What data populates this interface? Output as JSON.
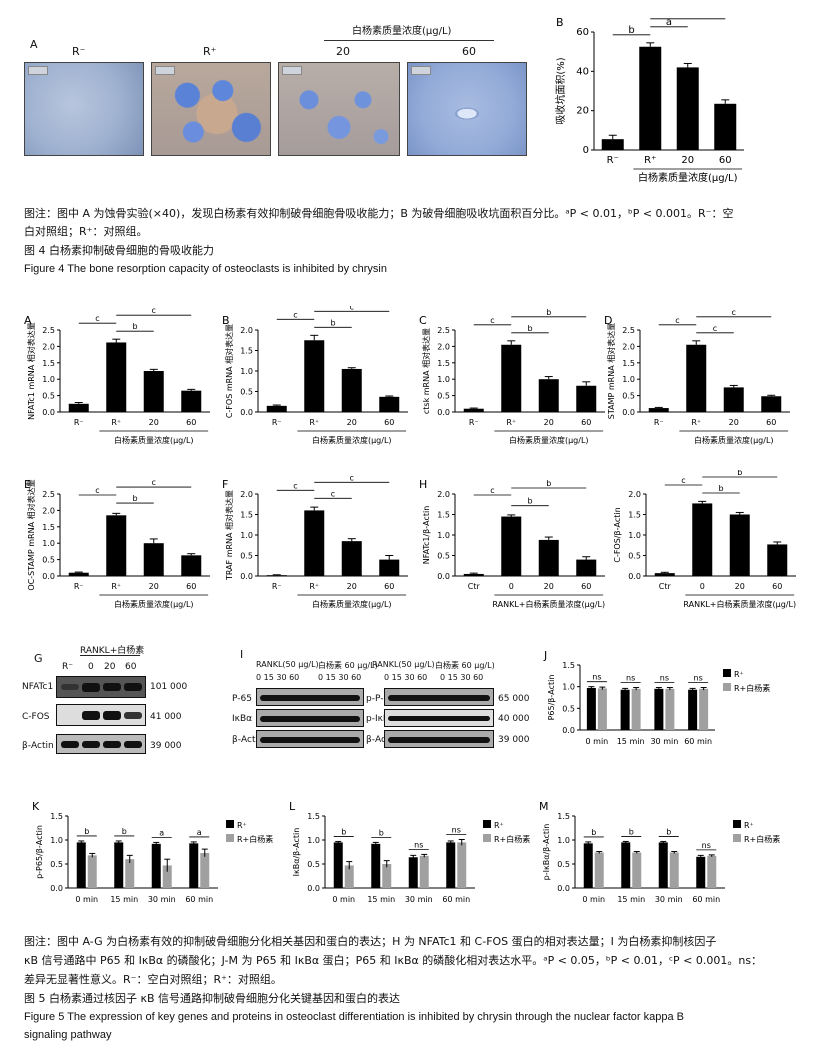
{
  "figure4": {
    "panel_a": {
      "letter": "A",
      "group_title": "白杨素质量浓度(μg/L)",
      "images": [
        {
          "label": "R⁻"
        },
        {
          "label": "R⁺"
        },
        {
          "label": "20"
        },
        {
          "label": "60"
        }
      ]
    },
    "caption": {
      "line1": "图注：图中 A 为蚀骨实验(×40)，发现白杨素有效抑制破骨细胞骨吸收能力；B 为破骨细胞吸收坑面积百分比。ᵃP < 0.01，ᵇP < 0.001。R⁻：空",
      "line2": "白对照组；R⁺：对照组。",
      "title_cn": "图 4   白杨素抑制破骨细胞的骨吸收能力",
      "title_en": "Figure 4    The bone resorption capacity of osteoclasts is inhibited by chrysin"
    }
  },
  "figure5": {
    "panel_g": {
      "letter": "G",
      "header": "RANKL+白杨素",
      "lanes": [
        "R⁻",
        "0",
        "20",
        "60"
      ],
      "rows": [
        {
          "name": "NFATc1",
          "mw": "101 000"
        },
        {
          "name": "C-FOS",
          "mw": "41 000"
        },
        {
          "name": "β-Actin",
          "mw": "39 000"
        }
      ]
    },
    "panel_i": {
      "letter": "I",
      "left_header1": "RANKL(50 μg/L)",
      "left_header2": "白杨素 60 μg/L)",
      "right_header1": "RANKL(50 μg/L)",
      "right_header2": "白杨素 60 μg/L)",
      "times": "0 15 30 60",
      "left_rows": [
        "P-65",
        "IκBα",
        "β-Actin"
      ],
      "right_rows": [
        "p-P-65",
        "p-IκBα",
        "β-Actin"
      ],
      "mws": [
        "65 000",
        "40 000",
        "39 000"
      ]
    },
    "caption": {
      "line1": "图注：图中 A-G 为白杨素有效的抑制破骨细胞分化相关基因和蛋白的表达；H 为 NFATc1 和 C-FOS 蛋白的相对表达量；I 为白杨素抑制核因子",
      "line2": "κB 信号通路中 P65 和 IκBα 的磷酸化；J-M 为 P65 和 IκBα 蛋白；P65 和 IκBα 的磷酸化相对表达水平。ᵃP < 0.05，ᵇP < 0.01，ᶜP < 0.001。ns：",
      "line3": "差异无显著性意义。R⁻：空白对照组；R⁺：对照组。",
      "title_cn": "图 5   白杨素通过核因子 κB 信号通路抑制破骨细胞分化关键基因和蛋白的表达",
      "title_en1": "Figure 5    The expression of key genes and proteins in osteoclast differentiation is inhibited by chrysin through the nuclear factor kappa B",
      "title_en2": "signaling pathway"
    }
  },
  "chart_data": [
    {
      "id": "4B",
      "letter": "B",
      "type": "bar",
      "ylabel": "吸收坑面积(%)",
      "ylim": [
        0,
        60
      ],
      "yticks": [
        0,
        20,
        40,
        60
      ],
      "categories": [
        "R⁻",
        "R⁺",
        "20",
        "60"
      ],
      "values": [
        5.5,
        52.5,
        42,
        23.5
      ],
      "errors": [
        2,
        2,
        2,
        2
      ],
      "group_label": "白杨素质量浓度(μg/L)",
      "sig": [
        {
          "from": 0,
          "to": 1,
          "label": "b",
          "level": 0
        },
        {
          "from": 1,
          "to": 2,
          "label": "a",
          "level": 1
        },
        {
          "from": 1,
          "to": 3,
          "label": "b",
          "level": 2
        }
      ]
    },
    {
      "id": "5A",
      "letter": "A",
      "type": "bar",
      "ylabel": "NFATc1 mRNA 相对表达量",
      "ylim": [
        0,
        2.5
      ],
      "yticks": [
        0.0,
        0.5,
        1.0,
        1.5,
        2.0,
        2.5
      ],
      "categories": [
        "R⁻",
        "R⁺",
        "20",
        "60"
      ],
      "values": [
        0.25,
        2.12,
        1.25,
        0.65
      ],
      "errors": [
        0.04,
        0.1,
        0.05,
        0.04
      ],
      "group_label": "白杨素质量浓度(μg/L)",
      "sig": [
        {
          "from": 0,
          "to": 1,
          "label": "c",
          "level": 1
        },
        {
          "from": 1,
          "to": 2,
          "label": "b",
          "level": 0
        },
        {
          "from": 1,
          "to": 3,
          "label": "c",
          "level": 2
        }
      ]
    },
    {
      "id": "5B",
      "letter": "B",
      "type": "bar",
      "ylabel": "C-FOS mRNA 相对表达量",
      "ylim": [
        0,
        2.0
      ],
      "yticks": [
        0.0,
        0.5,
        1.0,
        1.5,
        2.0
      ],
      "categories": [
        "R⁻",
        "R⁺",
        "20",
        "60"
      ],
      "values": [
        0.15,
        1.75,
        1.05,
        0.37
      ],
      "errors": [
        0.02,
        0.12,
        0.03,
        0.02
      ],
      "group_label": "白杨素质量浓度(μg/L)",
      "sig": [
        {
          "from": 0,
          "to": 1,
          "label": "c",
          "level": 1
        },
        {
          "from": 1,
          "to": 2,
          "label": "b",
          "level": 0
        },
        {
          "from": 1,
          "to": 3,
          "label": "c",
          "level": 2
        }
      ]
    },
    {
      "id": "5C",
      "letter": "C",
      "type": "bar",
      "ylabel": "ctsk mRNA 相对表达量",
      "ylim": [
        0,
        2.5
      ],
      "yticks": [
        0.0,
        0.5,
        1.0,
        1.5,
        2.0,
        2.5
      ],
      "categories": [
        "R⁻",
        "R⁺",
        "20",
        "60"
      ],
      "values": [
        0.1,
        2.05,
        1.0,
        0.8
      ],
      "errors": [
        0.02,
        0.12,
        0.08,
        0.12
      ],
      "group_label": "白杨素质量浓度(μg/L)",
      "sig": [
        {
          "from": 0,
          "to": 1,
          "label": "c",
          "level": 1
        },
        {
          "from": 1,
          "to": 2,
          "label": "b",
          "level": 0
        },
        {
          "from": 1,
          "to": 3,
          "label": "b",
          "level": 2
        }
      ]
    },
    {
      "id": "5D",
      "letter": "D",
      "type": "bar",
      "ylabel": "STAMP mRNA 相对表达量",
      "ylim": [
        0,
        2.5
      ],
      "yticks": [
        0.0,
        0.5,
        1.0,
        1.5,
        2.0,
        2.5
      ],
      "categories": [
        "R⁻",
        "R⁺",
        "20",
        "60"
      ],
      "values": [
        0.12,
        2.05,
        0.75,
        0.48
      ],
      "errors": [
        0.02,
        0.12,
        0.06,
        0.03
      ],
      "group_label": "白杨素质量浓度(μg/L)",
      "sig": [
        {
          "from": 0,
          "to": 1,
          "label": "c",
          "level": 1
        },
        {
          "from": 1,
          "to": 2,
          "label": "c",
          "level": 0
        },
        {
          "from": 1,
          "to": 3,
          "label": "c",
          "level": 2
        }
      ]
    },
    {
      "id": "5E",
      "letter": "E",
      "type": "bar",
      "ylabel": "OC-STAMP mRNA 相对表达量",
      "ylim": [
        0,
        2.5
      ],
      "yticks": [
        0.0,
        0.5,
        1.0,
        1.5,
        2.0,
        2.5
      ],
      "categories": [
        "R⁻",
        "R⁺",
        "20",
        "60"
      ],
      "values": [
        0.1,
        1.85,
        1.0,
        0.63
      ],
      "errors": [
        0.02,
        0.06,
        0.13,
        0.05
      ],
      "group_label": "白杨素质量浓度(μg/L)",
      "sig": [
        {
          "from": 0,
          "to": 1,
          "label": "c",
          "level": 1
        },
        {
          "from": 1,
          "to": 2,
          "label": "b",
          "level": 0
        },
        {
          "from": 1,
          "to": 3,
          "label": "c",
          "level": 2
        }
      ]
    },
    {
      "id": "5F",
      "letter": "F",
      "type": "bar",
      "ylabel": "TRAF mRNA 相对表达量",
      "ylim": [
        0,
        2.0
      ],
      "yticks": [
        0.0,
        0.5,
        1.0,
        1.5,
        2.0
      ],
      "categories": [
        "R⁻",
        "R⁺",
        "20",
        "60"
      ],
      "values": [
        0.02,
        1.6,
        0.85,
        0.4
      ],
      "errors": [
        0.01,
        0.08,
        0.06,
        0.1
      ],
      "group_label": "白杨素质量浓度(μg/L)",
      "sig": [
        {
          "from": 0,
          "to": 1,
          "label": "c",
          "level": 1
        },
        {
          "from": 1,
          "to": 2,
          "label": "c",
          "level": 0
        },
        {
          "from": 1,
          "to": 3,
          "label": "c",
          "level": 2
        }
      ]
    },
    {
      "id": "5H1",
      "letter": "H",
      "type": "bar",
      "ylabel": "NFATc1/β-Actin",
      "ylim": [
        0,
        2.0
      ],
      "yticks": [
        0.0,
        0.5,
        1.0,
        1.5,
        2.0
      ],
      "categories": [
        "Ctr",
        "0",
        "20",
        "60"
      ],
      "values": [
        0.05,
        1.45,
        0.88,
        0.4
      ],
      "errors": [
        0.02,
        0.04,
        0.07,
        0.07
      ],
      "group_label": "RANKL+白杨素质量浓度(μg/L)",
      "sig": [
        {
          "from": 0,
          "to": 1,
          "label": "c",
          "level": 1
        },
        {
          "from": 1,
          "to": 2,
          "label": "b",
          "level": 0
        },
        {
          "from": 1,
          "to": 3,
          "label": "b",
          "level": 2
        }
      ]
    },
    {
      "id": "5H2",
      "letter": "",
      "type": "bar",
      "ylabel": "C-FOS/β-Actin",
      "ylim": [
        0,
        2.0
      ],
      "yticks": [
        0.0,
        0.5,
        1.0,
        1.5,
        2.0
      ],
      "categories": [
        "Ctr",
        "0",
        "20",
        "60"
      ],
      "values": [
        0.07,
        1.77,
        1.5,
        0.77
      ],
      "errors": [
        0.02,
        0.05,
        0.05,
        0.06
      ],
      "group_label": "RANKL+白杨素质量浓度(μg/L)",
      "sig": [
        {
          "from": 0,
          "to": 1,
          "label": "c",
          "level": 1
        },
        {
          "from": 1,
          "to": 2,
          "label": "b",
          "level": 0
        },
        {
          "from": 1,
          "to": 3,
          "label": "b",
          "level": 2
        }
      ]
    },
    {
      "id": "5J",
      "letter": "J",
      "type": "bar",
      "ylabel": "P65/β-Actin",
      "ylim": [
        0,
        1.5
      ],
      "yticks": [
        0.0,
        0.5,
        1.0,
        1.5
      ],
      "categories": [
        "0 min",
        "15 min",
        "30 min",
        "60 min"
      ],
      "series": [
        {
          "name": "R⁺",
          "color": "#000000",
          "values": [
            0.97,
            0.93,
            0.95,
            0.93
          ],
          "errors": [
            0.03,
            0.03,
            0.03,
            0.03
          ]
        },
        {
          "name": "R+白杨素",
          "color": "#a0a0a0",
          "values": [
            0.96,
            0.95,
            0.95,
            0.95
          ],
          "errors": [
            0.03,
            0.03,
            0.03,
            0.03
          ]
        }
      ],
      "sig_labels": [
        "ns",
        "ns",
        "ns",
        "ns"
      ]
    },
    {
      "id": "5K",
      "letter": "K",
      "type": "bar",
      "ylabel": "p-P65/β-Actin",
      "ylim": [
        0,
        1.5
      ],
      "yticks": [
        0.0,
        0.5,
        1.0,
        1.5
      ],
      "categories": [
        "0 min",
        "15 min",
        "30 min",
        "60 min"
      ],
      "series": [
        {
          "name": "R⁺",
          "color": "#000000",
          "values": [
            0.95,
            0.95,
            0.92,
            0.93
          ],
          "errors": [
            0.03,
            0.03,
            0.03,
            0.03
          ]
        },
        {
          "name": "R+白杨素",
          "color": "#a0a0a0",
          "values": [
            0.68,
            0.6,
            0.47,
            0.73
          ],
          "errors": [
            0.04,
            0.08,
            0.13,
            0.08
          ]
        }
      ],
      "sig_labels": [
        "b",
        "b",
        "a",
        "a"
      ]
    },
    {
      "id": "5L",
      "letter": "L",
      "type": "bar",
      "ylabel": "IκBα/β-Actin",
      "ylim": [
        0,
        1.5
      ],
      "yticks": [
        0.0,
        0.5,
        1.0,
        1.5
      ],
      "categories": [
        "0 min",
        "15 min",
        "30 min",
        "60 min"
      ],
      "series": [
        {
          "name": "R⁺",
          "color": "#000000",
          "values": [
            0.95,
            0.92,
            0.64,
            0.95
          ],
          "errors": [
            0.02,
            0.03,
            0.04,
            0.03
          ]
        },
        {
          "name": "R+白杨素",
          "color": "#a0a0a0",
          "values": [
            0.47,
            0.5,
            0.67,
            0.95
          ],
          "errors": [
            0.08,
            0.07,
            0.03,
            0.06
          ]
        }
      ],
      "sig_labels": [
        "b",
        "b",
        "ns",
        "ns"
      ]
    },
    {
      "id": "5M",
      "letter": "M",
      "type": "bar",
      "ylabel": "p-IκBα/β-Actin",
      "ylim": [
        0,
        1.5
      ],
      "yticks": [
        0.0,
        0.5,
        1.0,
        1.5
      ],
      "categories": [
        "0 min",
        "15 min",
        "30 min",
        "60 min"
      ],
      "series": [
        {
          "name": "R⁺",
          "color": "#000000",
          "values": [
            0.93,
            0.95,
            0.95,
            0.65
          ],
          "errors": [
            0.03,
            0.02,
            0.02,
            0.03
          ]
        },
        {
          "name": "R+白杨素",
          "color": "#a0a0a0",
          "values": [
            0.74,
            0.74,
            0.74,
            0.67
          ],
          "errors": [
            0.02,
            0.02,
            0.02,
            0.02
          ]
        }
      ],
      "sig_labels": [
        "b",
        "b",
        "b",
        "ns"
      ]
    }
  ]
}
